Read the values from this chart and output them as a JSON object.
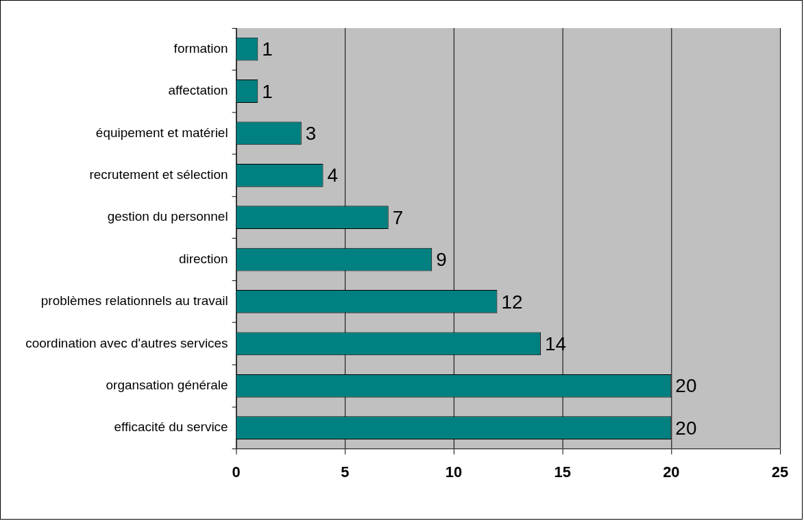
{
  "chart_data": {
    "type": "bar",
    "orientation": "horizontal",
    "categories": [
      "formation",
      "affectation",
      "équipement et matériel",
      "recrutement et sélection",
      "gestion du personnel",
      "direction",
      "problèmes relationnels au travail",
      "coordination avec d'autres services",
      "organsation générale",
      "efficacité du service"
    ],
    "values": [
      1,
      1,
      3,
      4,
      7,
      9,
      12,
      14,
      20,
      20
    ],
    "color": "#008080",
    "xlim": [
      0,
      25
    ],
    "xticks": [
      0,
      5,
      10,
      15,
      20,
      25
    ],
    "grid": "x",
    "legend": false,
    "data_labels": true
  }
}
